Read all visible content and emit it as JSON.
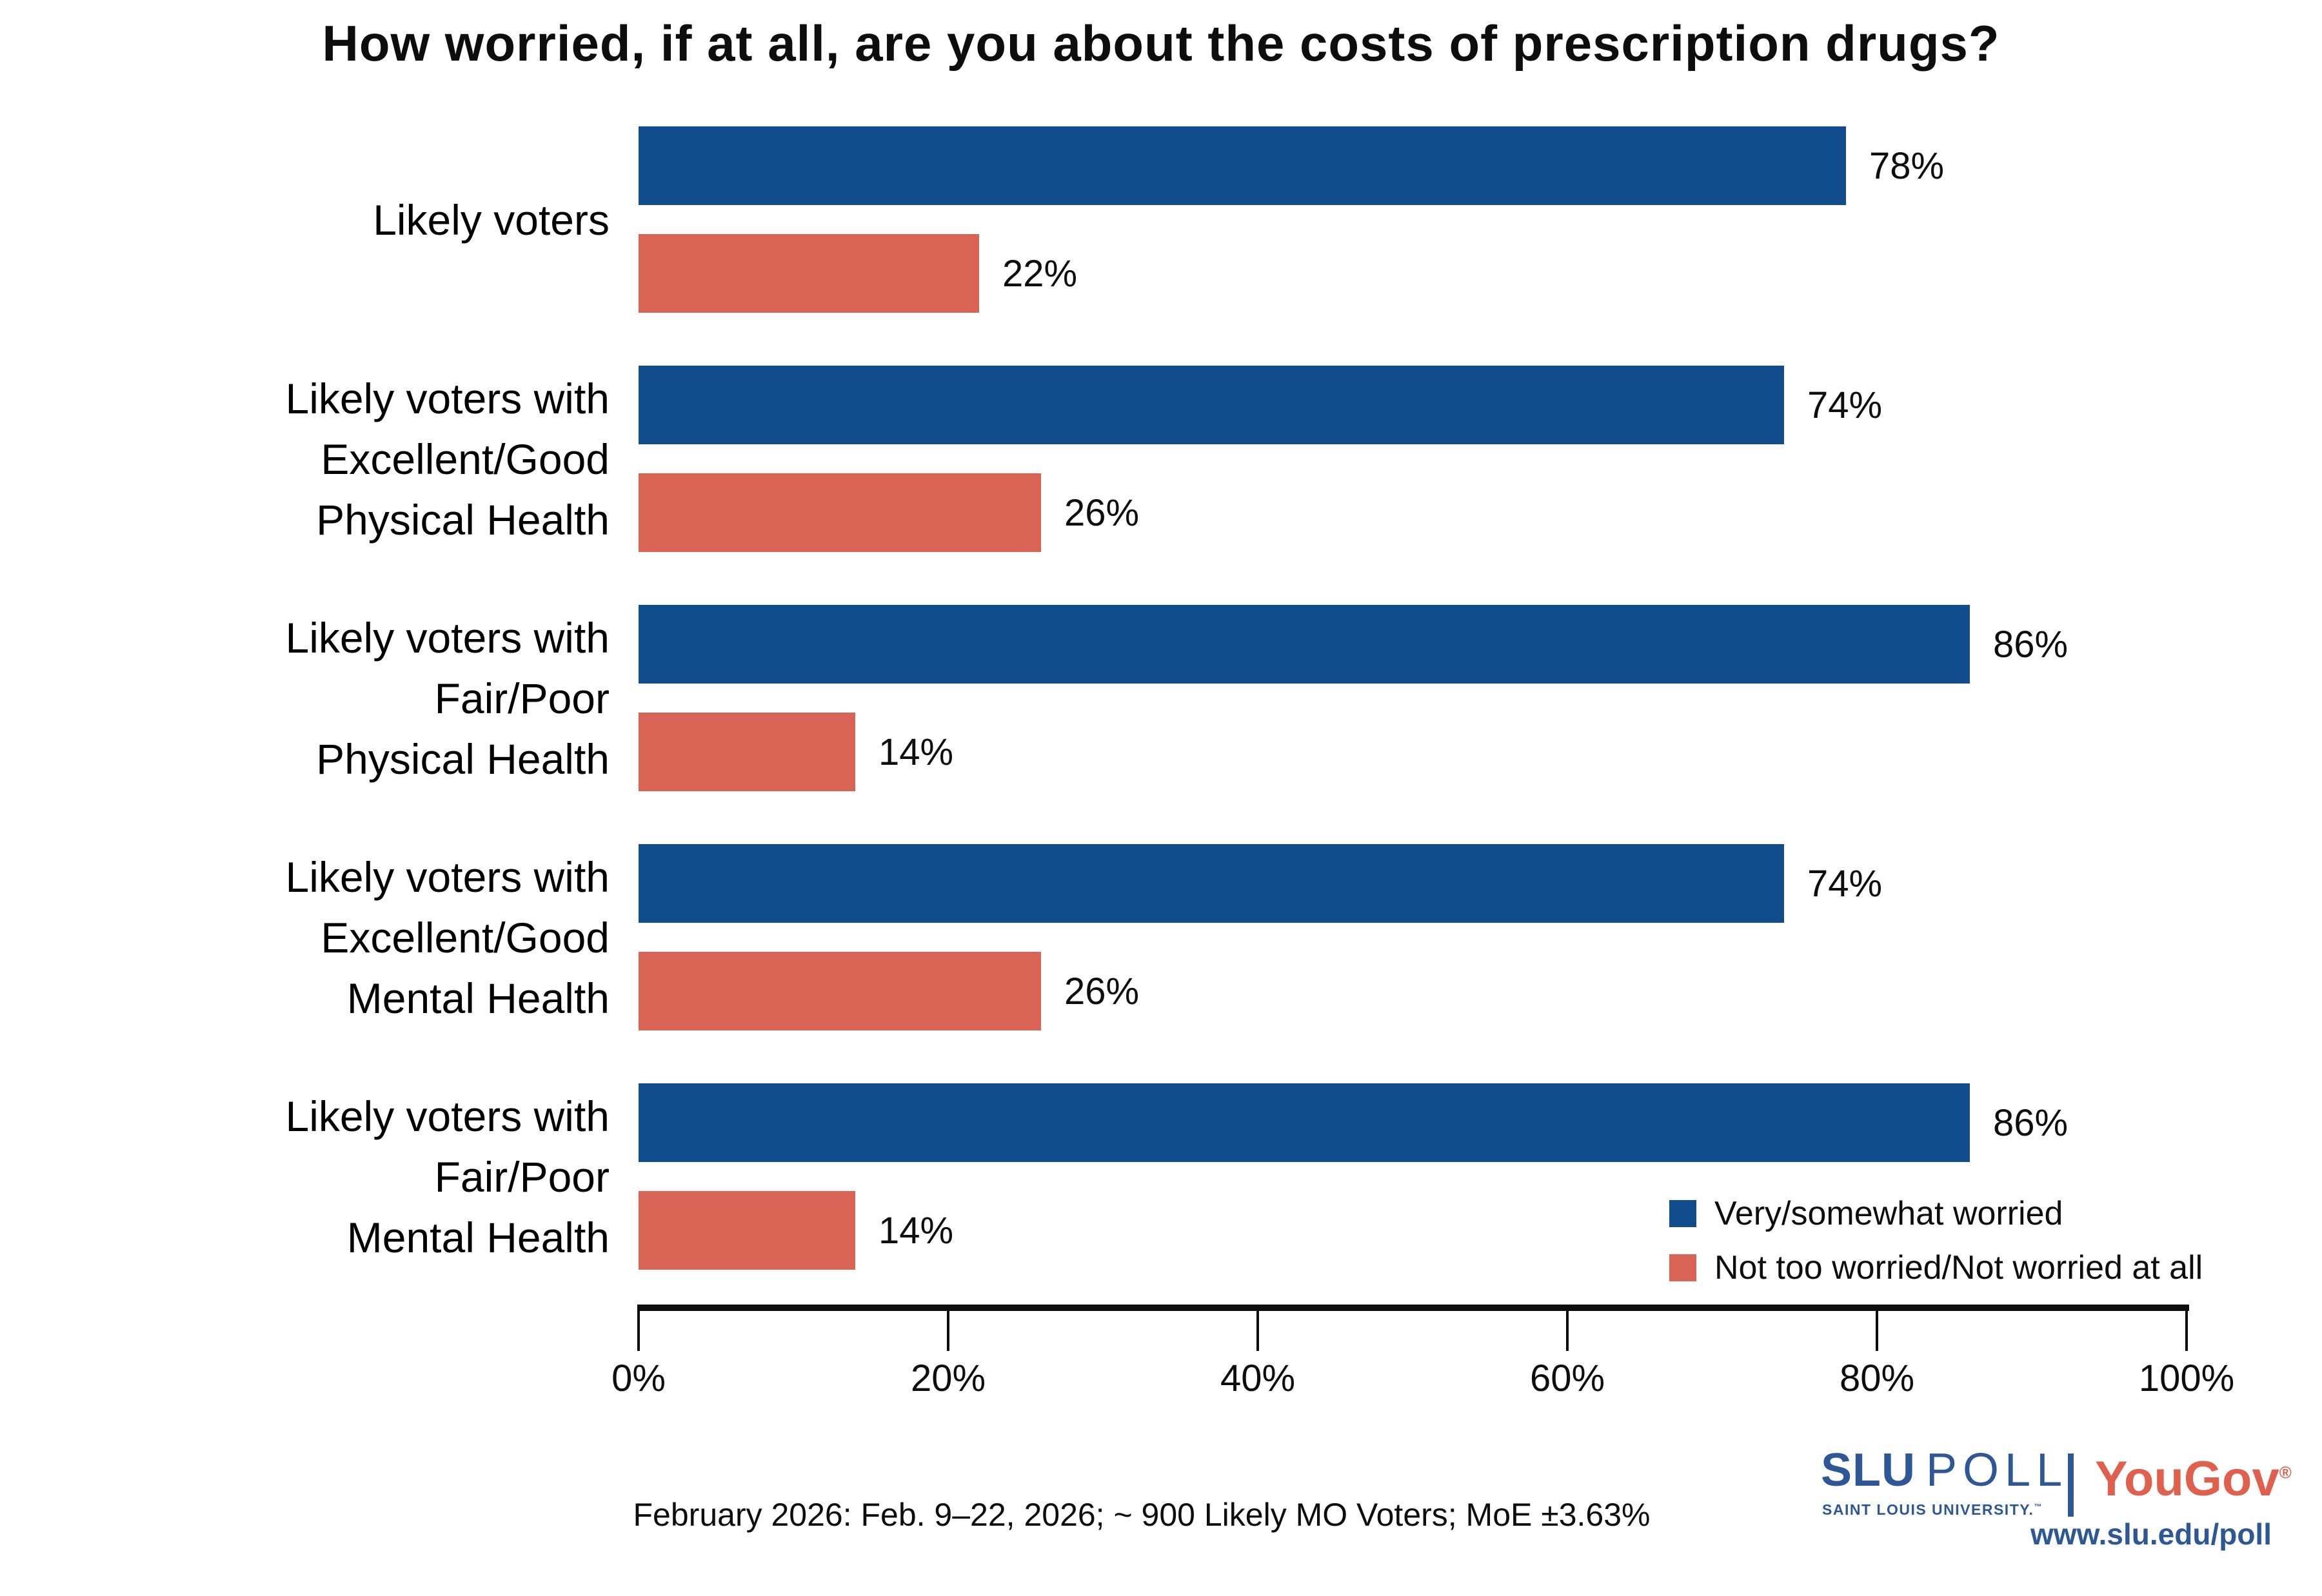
{
  "chart_data": {
    "type": "bar",
    "orientation": "horizontal",
    "title": "How worried, if at all, are you about the costs of prescription drugs?",
    "categories": [
      [
        "Likely voters"
      ],
      [
        "Likely voters with",
        "Excellent/Good",
        "Physical Health"
      ],
      [
        "Likely voters with",
        "Fair/Poor",
        "Physical Health"
      ],
      [
        "Likely voters with",
        "Excellent/Good",
        "Mental Health"
      ],
      [
        "Likely voters with",
        "Fair/Poor",
        "Mental Health"
      ]
    ],
    "series": [
      {
        "name": "Very/somewhat worried",
        "color": "#114C8C",
        "values": [
          78,
          74,
          86,
          74,
          86
        ]
      },
      {
        "name": "Not too worried/Not worried at all",
        "color": "#D96355",
        "values": [
          22,
          26,
          14,
          26,
          14
        ]
      }
    ],
    "value_labels": true,
    "value_suffix": "%",
    "xlabel": "",
    "ylabel": "",
    "xlim": [
      0,
      100
    ],
    "x_ticks": [
      "0%",
      "20%",
      "40%",
      "60%",
      "80%",
      "100%"
    ],
    "grid": false,
    "legend_position": "bottom-right"
  },
  "legend": {
    "items": [
      {
        "label": "Very/somewhat worried",
        "color": "#114C8C"
      },
      {
        "label": "Not too worried/Not worried at all",
        "color": "#D96355"
      }
    ]
  },
  "footer": {
    "source": "February 2026: Feb. 9–22, 2026; ~ 900 Likely MO Voters; MoE ±3.63%"
  },
  "branding": {
    "slu": "SLU",
    "poll": "POLL",
    "university": "SAINT LOUIS UNIVERSITY.",
    "trademark": "™",
    "yougov": "YouGov",
    "registered": "®",
    "url": "www.slu.edu/poll",
    "slu_blue": "#2D5795",
    "yougov_red": "#E0604E"
  },
  "colors": {
    "bar_blue": "#114C8C",
    "bar_red": "#D96355",
    "axis": "#0d0d0d"
  }
}
